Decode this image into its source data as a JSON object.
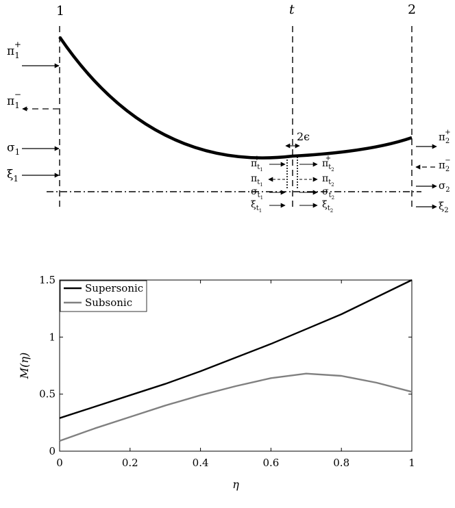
{
  "diagram": {
    "station_1": "1",
    "station_t": "t",
    "station_2": "2",
    "gap_label": "2ϵ",
    "left_inputs": [
      {
        "base": "π",
        "sub": "1",
        "sup": "+"
      },
      {
        "base": "π",
        "sub": "1",
        "sup": "−"
      },
      {
        "base": "σ",
        "sub": "1",
        "sup": ""
      },
      {
        "base": "ξ",
        "sub": "1",
        "sup": ""
      }
    ],
    "throat_left": [
      {
        "base": "π",
        "sub": "t",
        "subsub": "1",
        "sup": "+"
      },
      {
        "base": "π",
        "sub": "t",
        "subsub": "1",
        "sup": ""
      },
      {
        "base": "σ",
        "sub": "t",
        "subsub": "1",
        "sup": ""
      },
      {
        "base": "ξ",
        "sub": "t",
        "subsub": "1",
        "sup": ""
      }
    ],
    "throat_right": [
      {
        "base": "π",
        "sub": "t",
        "subsub": "2",
        "sup": "+"
      },
      {
        "base": "π",
        "sub": "t",
        "subsub": "2",
        "sup": ""
      },
      {
        "base": "σ",
        "sub": "t",
        "subsub": "2",
        "sup": ""
      },
      {
        "base": "ξ",
        "sub": "t",
        "subsub": "2",
        "sup": ""
      }
    ],
    "right_outputs": [
      {
        "base": "π",
        "sub": "2",
        "sup": "+"
      },
      {
        "base": "π",
        "sub": "2",
        "sup": "−"
      },
      {
        "base": "σ",
        "sub": "2",
        "sup": ""
      },
      {
        "base": "ξ",
        "sub": "2",
        "sup": ""
      }
    ]
  },
  "chart_data": {
    "type": "line",
    "xlabel": "η",
    "ylabel": "M(η)",
    "xlim": [
      0,
      1
    ],
    "ylim": [
      0,
      1.5
    ],
    "xticks": [
      "0",
      "0.2",
      "0.4",
      "0.6",
      "0.8",
      "1"
    ],
    "yticks": [
      "0",
      "0.5",
      "1",
      "1.5"
    ],
    "legend_position": "top-left",
    "grid": false,
    "series": [
      {
        "name": "Supersonic",
        "color": "#000000",
        "x": [
          0,
          0.1,
          0.2,
          0.3,
          0.4,
          0.5,
          0.6,
          0.7,
          0.8,
          0.9,
          1.0
        ],
        "y": [
          0.29,
          0.39,
          0.49,
          0.59,
          0.7,
          0.82,
          0.94,
          1.07,
          1.2,
          1.35,
          1.5
        ]
      },
      {
        "name": "Subsonic",
        "color": "#808080",
        "x": [
          0,
          0.1,
          0.2,
          0.3,
          0.4,
          0.5,
          0.6,
          0.7,
          0.8,
          0.9,
          1.0
        ],
        "y": [
          0.09,
          0.2,
          0.3,
          0.4,
          0.49,
          0.57,
          0.64,
          0.68,
          0.66,
          0.6,
          0.52
        ]
      }
    ]
  }
}
